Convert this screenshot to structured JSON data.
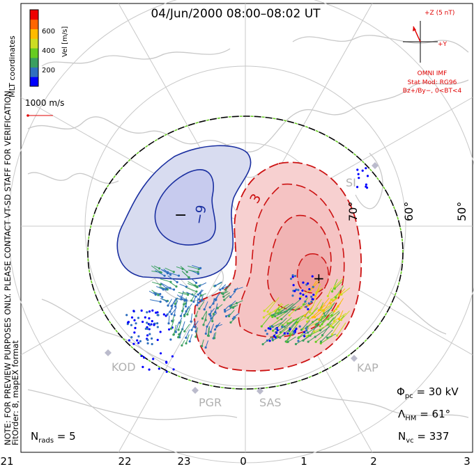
{
  "title": "04/Jun/2000 08:00–08:02 UT",
  "coords_label": "MLT coordinates",
  "colorbar": {
    "label": "Vel [m/s]",
    "ticks": [
      "600",
      "400",
      "200"
    ],
    "colors": [
      "#0000ff",
      "#2f6fbf",
      "#3a9f60",
      "#66cc22",
      "#ccdd22",
      "#ffbb00",
      "#ff6600",
      "#ee0000"
    ]
  },
  "scale_label": "1000 m/s",
  "imf": {
    "z_label": "+Z (5 nT)",
    "y_label": "+Y",
    "title": "OMNI IMF",
    "model_line": "Stat Mod: RG96",
    "cond_line": "Bz+/By−, 0<BT<4"
  },
  "side_notes": {
    "line1": "NOTE: FOR PREVIEW PURPOSES ONLY. PLEASE CONTACT VT-SD STAFF FOR VERIFICATION.",
    "line2": "FitOrder: 8, mapEX format"
  },
  "contours": {
    "neg_label": "−9",
    "pos_label": "3",
    "min_marker": "−",
    "max_marker": "+"
  },
  "lat_labels": [
    "70°",
    "60°",
    "50°"
  ],
  "stations": [
    "KOD",
    "PGR",
    "SAS",
    "KAP",
    "SI"
  ],
  "mlt_labels": [
    "21",
    "22",
    "23",
    "0",
    "1",
    "2",
    "3"
  ],
  "stats": {
    "phi_prefix": "Φ",
    "phi_sub": "pc",
    "phi_value": " = 30 kV",
    "lambda_prefix": "Λ",
    "lambda_sub": "HM",
    "lambda_value": " = 61°",
    "nvc_prefix": "N",
    "nvc_sub": "vc",
    "nvc_value": " = 337",
    "nrads_prefix": "N",
    "nrads_sub": "rads",
    "nrads_value": " = 5"
  },
  "colors": {
    "neg_contour": "#1a2fa0",
    "neg_fill": "#d8dcf0",
    "pos_contour": "#cc1111",
    "pos_fill": "#f7d0d0",
    "coast": "#c8c8c8",
    "grid": "#c8c8c8",
    "hmb": "#000000",
    "imf": "#e00000"
  }
}
